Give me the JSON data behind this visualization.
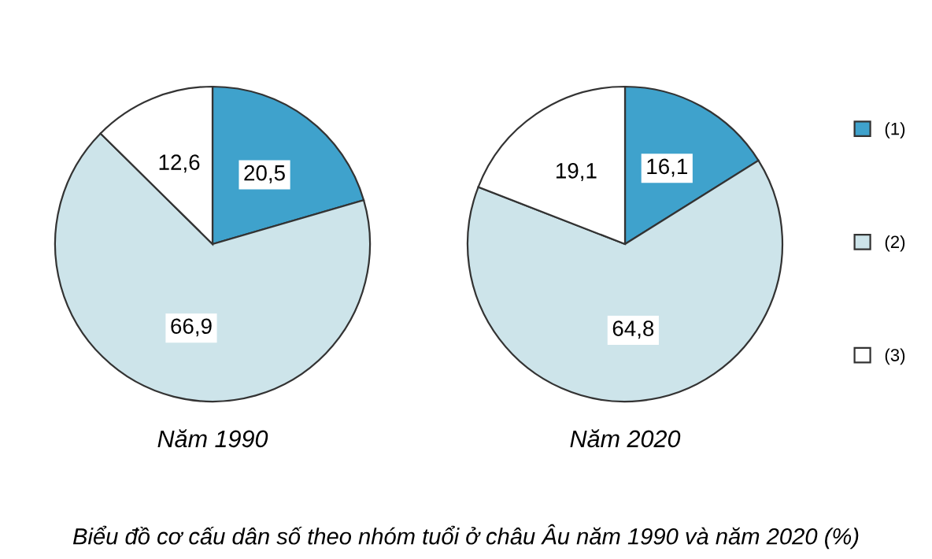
{
  "chart_data": [
    {
      "type": "pie",
      "xlabel": "Năm 1990",
      "categories": [
        "(1)",
        "(2)",
        "(3)"
      ],
      "values": [
        20.5,
        66.9,
        12.6
      ],
      "colors": [
        "#3fa2cc",
        "#cde4ea",
        "#ffffff"
      ],
      "value_labels": [
        "20,5",
        "66,9",
        "12,6"
      ],
      "legend": "right",
      "annotations": [
        "Biểu đồ cơ cấu dân số theo nhóm tuổi ở châu Âu năm 1990 và năm 2020 (%)"
      ]
    },
    {
      "type": "pie",
      "xlabel": "Năm 2020",
      "categories": [
        null,
        null,
        null
      ],
      "values": [
        16.1,
        64.8,
        19.1
      ],
      "colors": [
        "#3fa2cc",
        "#cde4ea",
        "#ffffff"
      ],
      "value_labels": [
        "16,1",
        "64,8",
        "19,1"
      ]
    }
  ]
}
